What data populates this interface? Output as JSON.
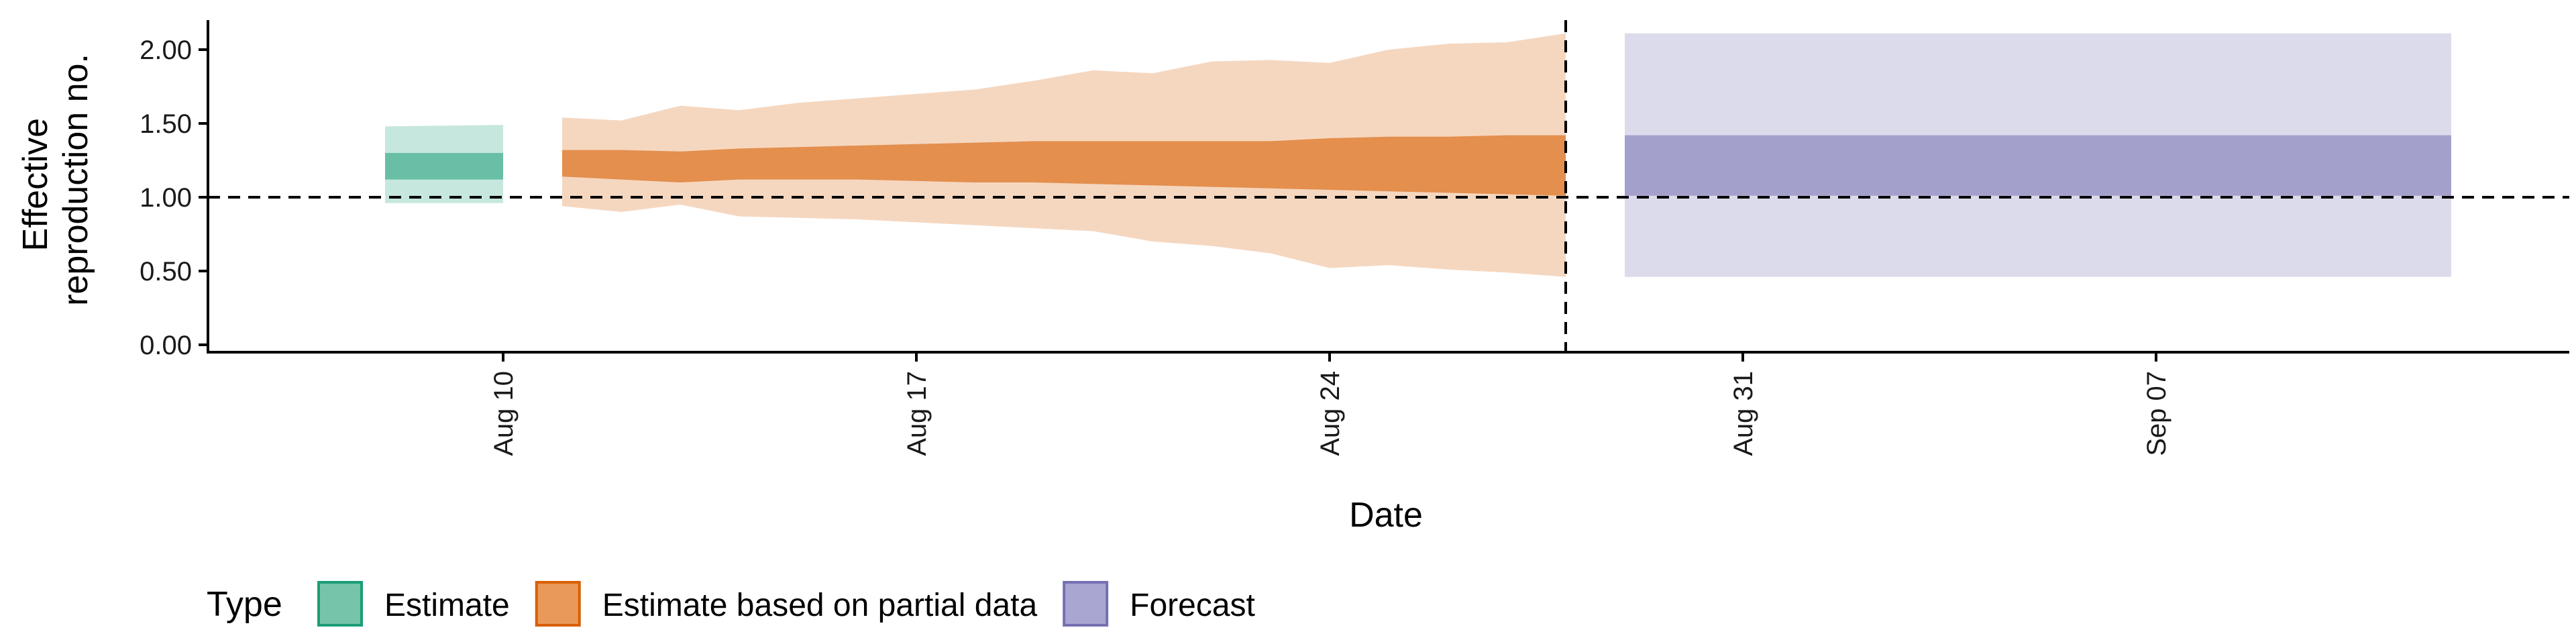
{
  "chart_data": {
    "type": "area",
    "xlabel": "Date",
    "ylabel_lines": [
      "Effective",
      "reproduction no."
    ],
    "ylim": [
      -0.05,
      2.2
    ],
    "y_ticks": [
      0.0,
      0.5,
      1.0,
      1.5,
      2.0
    ],
    "y_tick_labels": [
      "0.00",
      "0.50",
      "1.00",
      "1.50",
      "2.00"
    ],
    "x_range": [
      "2020-08-05",
      "2020-09-14"
    ],
    "x_ticks": [
      "2020-08-10",
      "2020-08-17",
      "2020-08-24",
      "2020-08-31",
      "2020-09-07"
    ],
    "x_tick_labels": [
      "Aug 10",
      "Aug 17",
      "Aug 24",
      "Aug 31",
      "Sep 07"
    ],
    "reference_hline": 1.0,
    "reference_vline": "2020-08-28",
    "legend": {
      "title": "Type",
      "position": "bottom",
      "items": [
        {
          "label": "Estimate",
          "fill": "#76c4aa",
          "border": "#1b9e77"
        },
        {
          "label": "Estimate based on partial data",
          "fill": "#e9995a",
          "border": "#d95f02"
        },
        {
          "label": "Forecast",
          "fill": "#a9a6d2",
          "border": "#7570b3"
        }
      ]
    },
    "series": [
      {
        "name": "Estimate",
        "color": "#1b9e77",
        "outer_alpha": 0.25,
        "inner_alpha": 0.55,
        "points": [
          {
            "x": "2020-08-08",
            "lo90": 0.96,
            "lo50": 1.12,
            "hi50": 1.3,
            "hi90": 1.48
          },
          {
            "x": "2020-08-10",
            "lo90": 0.96,
            "lo50": 1.12,
            "hi50": 1.3,
            "hi90": 1.49
          }
        ]
      },
      {
        "name": "Estimate based on partial data",
        "color": "#d95f02",
        "outer_alpha": 0.25,
        "inner_alpha": 0.6,
        "points": [
          {
            "x": "2020-08-11",
            "lo90": 0.94,
            "lo50": 1.14,
            "hi50": 1.32,
            "hi90": 1.54
          },
          {
            "x": "2020-08-12",
            "lo90": 0.9,
            "lo50": 1.12,
            "hi50": 1.32,
            "hi90": 1.52
          },
          {
            "x": "2020-08-13",
            "lo90": 0.95,
            "lo50": 1.1,
            "hi50": 1.31,
            "hi90": 1.62
          },
          {
            "x": "2020-08-14",
            "lo90": 0.87,
            "lo50": 1.12,
            "hi50": 1.33,
            "hi90": 1.59
          },
          {
            "x": "2020-08-15",
            "lo90": 0.86,
            "lo50": 1.12,
            "hi50": 1.34,
            "hi90": 1.64
          },
          {
            "x": "2020-08-16",
            "lo90": 0.85,
            "lo50": 1.12,
            "hi50": 1.35,
            "hi90": 1.67
          },
          {
            "x": "2020-08-17",
            "lo90": 0.83,
            "lo50": 1.11,
            "hi50": 1.36,
            "hi90": 1.7
          },
          {
            "x": "2020-08-18",
            "lo90": 0.81,
            "lo50": 1.1,
            "hi50": 1.37,
            "hi90": 1.73
          },
          {
            "x": "2020-08-19",
            "lo90": 0.79,
            "lo50": 1.1,
            "hi50": 1.38,
            "hi90": 1.79
          },
          {
            "x": "2020-08-20",
            "lo90": 0.77,
            "lo50": 1.09,
            "hi50": 1.38,
            "hi90": 1.86
          },
          {
            "x": "2020-08-21",
            "lo90": 0.7,
            "lo50": 1.08,
            "hi50": 1.38,
            "hi90": 1.84
          },
          {
            "x": "2020-08-22",
            "lo90": 0.67,
            "lo50": 1.07,
            "hi50": 1.38,
            "hi90": 1.92
          },
          {
            "x": "2020-08-23",
            "lo90": 0.62,
            "lo50": 1.06,
            "hi50": 1.38,
            "hi90": 1.93
          },
          {
            "x": "2020-08-24",
            "lo90": 0.52,
            "lo50": 1.05,
            "hi50": 1.4,
            "hi90": 1.91
          },
          {
            "x": "2020-08-25",
            "lo90": 0.54,
            "lo50": 1.04,
            "hi50": 1.41,
            "hi90": 2.0
          },
          {
            "x": "2020-08-26",
            "lo90": 0.51,
            "lo50": 1.03,
            "hi50": 1.41,
            "hi90": 2.04
          },
          {
            "x": "2020-08-27",
            "lo90": 0.49,
            "lo50": 1.02,
            "hi50": 1.42,
            "hi90": 2.05
          },
          {
            "x": "2020-08-28",
            "lo90": 0.46,
            "lo50": 1.01,
            "hi50": 1.42,
            "hi90": 2.11
          }
        ]
      },
      {
        "name": "Forecast",
        "color": "#7570b3",
        "outer_alpha": 0.25,
        "inner_alpha": 0.55,
        "points": [
          {
            "x": "2020-08-29",
            "lo90": 0.46,
            "lo50": 1.01,
            "hi50": 1.42,
            "hi90": 2.11
          },
          {
            "x": "2020-09-12",
            "lo90": 0.46,
            "lo50": 1.01,
            "hi50": 1.42,
            "hi90": 2.11
          }
        ]
      }
    ]
  }
}
